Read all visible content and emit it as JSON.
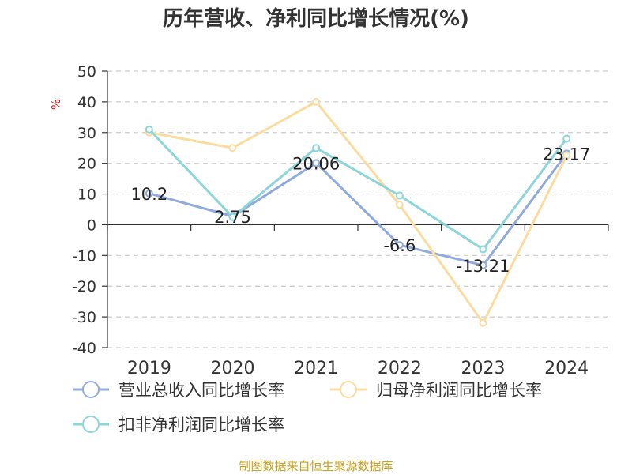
{
  "chart_data": {
    "type": "line",
    "title": "历年营收、净利同比增长情况(%)",
    "ylabel": "%",
    "xlabel": "",
    "categories": [
      "2019",
      "2020",
      "2021",
      "2022",
      "2023",
      "2024"
    ],
    "ylim": [
      -40,
      50
    ],
    "yticks": [
      50,
      40,
      30,
      20,
      10,
      0,
      -10,
      -20,
      -30,
      -40
    ],
    "grid": true,
    "legend_position": "bottom-left",
    "series": [
      {
        "name": "营业总收入同比增长率",
        "color": "#8faadc",
        "values": [
          10.2,
          2.75,
          20.06,
          -6.6,
          -13.21,
          23.17
        ],
        "labels": [
          "10.2",
          "2.75",
          "20.06",
          "-6.6",
          "-13.21",
          "23.17"
        ]
      },
      {
        "name": "归母净利润同比增长率",
        "color": "#fbdc9e",
        "values": [
          30,
          25,
          40,
          6.5,
          -32,
          22.5
        ]
      },
      {
        "name": "扣非净利润同比增长率",
        "color": "#8dd5d9",
        "values": [
          31,
          2.5,
          25,
          9.5,
          -8,
          28
        ]
      }
    ]
  },
  "source_text": "制图数据来自恒生聚源数据库",
  "colors": {
    "axis": "#333333",
    "grid": "#cccccc",
    "ylabel": "#e02020",
    "source": "#c9a020"
  }
}
